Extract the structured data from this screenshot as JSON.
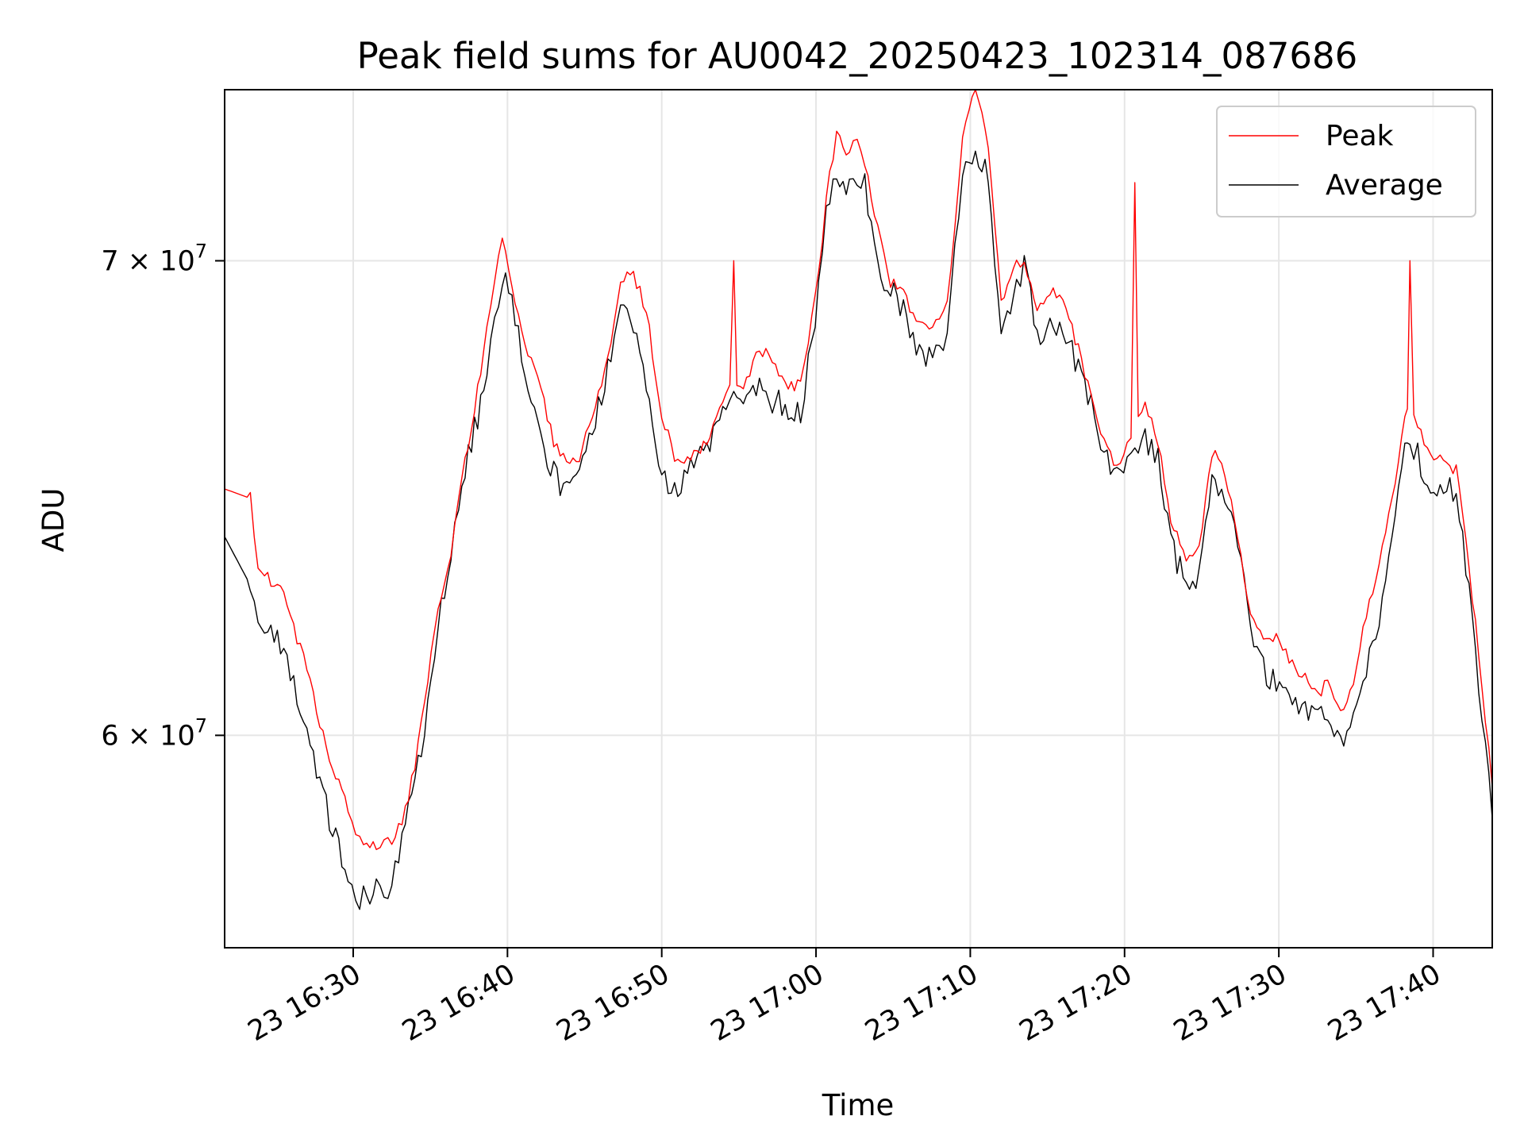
{
  "chart_data": {
    "type": "line",
    "title": "Peak field sums for AU0042_20250423_102314_087686",
    "xlabel": "Time",
    "ylabel": "ADU",
    "yscale": "log",
    "grid": true,
    "legend_position": "upper right",
    "x_ticks": [
      "23 16:30",
      "23 16:40",
      "23 16:50",
      "23 17:00",
      "23 17:10",
      "23 17:20",
      "23 17:30",
      "23 17:40"
    ],
    "y_ticks": [
      {
        "base": "6",
        "exp": "7",
        "value": 60000000
      },
      {
        "base": "7",
        "exp": "7",
        "value": 70000000
      }
    ],
    "xlim": [
      "16:21:40",
      "17:43:50"
    ],
    "ylim": [
      56000000,
      74000000
    ],
    "series": [
      {
        "name": "Peak",
        "color": "#ff0000",
        "x": [
          "16:21:40",
          "16:23:20",
          "16:23:50",
          "16:25:30",
          "16:27:00",
          "16:27:50",
          "16:28:40",
          "16:29:40",
          "16:30:10",
          "16:30:40",
          "16:31:30",
          "16:32:00",
          "16:32:30",
          "16:33:10",
          "16:34:00",
          "16:34:50",
          "16:35:30",
          "16:36:20",
          "16:36:50",
          "16:37:40",
          "16:38:40",
          "16:39:10",
          "16:39:40",
          "16:40:30",
          "16:41:20",
          "16:42:10",
          "16:43:00",
          "16:43:50",
          "16:44:40",
          "16:45:30",
          "16:46:30",
          "16:47:20",
          "16:48:10",
          "16:49:00",
          "16:50:00",
          "16:50:50",
          "16:51:40",
          "16:52:30",
          "16:53:20",
          "16:54:10",
          "16:54:40",
          "16:55:30",
          "16:56:20",
          "16:57:10",
          "16:58:00",
          "16:59:00",
          "16:59:30",
          "17:00:10",
          "17:00:40",
          "17:01:20",
          "17:02:10",
          "17:02:40",
          "17:03:10",
          "17:04:00",
          "17:04:50",
          "17:05:40",
          "17:06:30",
          "17:07:20",
          "17:08:00",
          "17:08:30",
          "17:09:00",
          "17:09:30",
          "17:10:20",
          "17:11:10",
          "17:12:00",
          "17:13:00",
          "17:13:30",
          "17:14:20",
          "17:15:10",
          "17:16:00",
          "17:17:00",
          "17:17:50",
          "17:18:40",
          "17:19:30",
          "17:20:10",
          "17:20:40",
          "17:21:20",
          "17:22:10",
          "17:23:00",
          "17:24:00",
          "17:24:50",
          "17:25:40",
          "17:26:30",
          "17:27:20",
          "17:28:10",
          "17:29:00",
          "17:29:50",
          "17:30:40",
          "17:31:30",
          "17:32:20",
          "17:33:10",
          "17:34:00",
          "17:34:50",
          "17:35:40",
          "17:36:30",
          "17:37:20",
          "17:38:10",
          "17:38:30",
          "17:39:00",
          "17:39:50",
          "17:40:40",
          "17:41:30",
          "17:42:20",
          "17:43:10",
          "17:43:50"
        ],
        "values": [
          65000000,
          64800000,
          63400000,
          62800000,
          61300000,
          60200000,
          59400000,
          58600000,
          58000000,
          57900000,
          57850000,
          57900000,
          58000000,
          58300000,
          59400000,
          61000000,
          62600000,
          63600000,
          64900000,
          66300000,
          68400000,
          69500000,
          70500000,
          69000000,
          68000000,
          67100000,
          66000000,
          65500000,
          65700000,
          66600000,
          67800000,
          69600000,
          69700000,
          68900000,
          66600000,
          65700000,
          65600000,
          65800000,
          66300000,
          67000000,
          67200000,
          67300000,
          68000000,
          67800000,
          67300000,
          67200000,
          68200000,
          69700000,
          71400000,
          73000000,
          72400000,
          72900000,
          72200000,
          70700000,
          69500000,
          69300000,
          68600000,
          68400000,
          68600000,
          69000000,
          70800000,
          73000000,
          74000000,
          72700000,
          69000000,
          69900000,
          70000000,
          68900000,
          69300000,
          69200000,
          68000000,
          67000000,
          66000000,
          65500000,
          66000000,
          66300000,
          66800000,
          66000000,
          64300000,
          63500000,
          63800000,
          65800000,
          65400000,
          64000000,
          62400000,
          62000000,
          61900000,
          61500000,
          61200000,
          60800000,
          61000000,
          60400000,
          61000000,
          62400000,
          63500000,
          64800000,
          66500000,
          66800000,
          66400000,
          65700000,
          65600000,
          65400000,
          63400000,
          61000000,
          59000000
        ],
        "spikes": [
          {
            "x": "16:54:40",
            "y": 70000000
          },
          {
            "x": "17:20:40",
            "y": 71800000
          },
          {
            "x": "17:38:30",
            "y": 70000000
          }
        ]
      },
      {
        "name": "Average",
        "color": "#000000",
        "x": [
          "16:21:40",
          "16:23:20",
          "16:23:50",
          "16:25:30",
          "16:27:00",
          "16:27:50",
          "16:28:40",
          "16:29:40",
          "16:30:10",
          "16:30:40",
          "16:31:30",
          "16:32:00",
          "16:32:30",
          "16:33:10",
          "16:34:00",
          "16:34:50",
          "16:35:30",
          "16:36:20",
          "16:36:50",
          "16:37:40",
          "16:38:40",
          "16:39:10",
          "16:39:40",
          "16:40:30",
          "16:41:20",
          "16:42:10",
          "16:43:00",
          "16:43:50",
          "16:44:40",
          "16:45:30",
          "16:46:30",
          "16:47:20",
          "16:48:10",
          "16:49:00",
          "16:50:00",
          "16:50:50",
          "16:51:40",
          "16:52:30",
          "16:53:20",
          "16:54:10",
          "16:54:40",
          "16:55:30",
          "16:56:20",
          "16:57:10",
          "16:58:00",
          "16:59:00",
          "16:59:30",
          "17:00:10",
          "17:00:40",
          "17:01:20",
          "17:02:10",
          "17:02:40",
          "17:03:10",
          "17:04:00",
          "17:04:50",
          "17:05:40",
          "17:06:30",
          "17:07:20",
          "17:08:00",
          "17:08:30",
          "17:09:00",
          "17:09:30",
          "17:10:20",
          "17:11:10",
          "17:12:00",
          "17:13:00",
          "17:13:30",
          "17:14:20",
          "17:15:10",
          "17:16:00",
          "17:17:00",
          "17:17:50",
          "17:18:40",
          "17:19:30",
          "17:20:10",
          "17:20:40",
          "17:21:20",
          "17:22:10",
          "17:23:00",
          "17:24:00",
          "17:24:50",
          "17:25:40",
          "17:26:30",
          "17:27:20",
          "17:28:10",
          "17:29:00",
          "17:29:50",
          "17:30:40",
          "17:31:30",
          "17:32:20",
          "17:33:10",
          "17:34:00",
          "17:34:50",
          "17:35:40",
          "17:36:30",
          "17:37:20",
          "17:38:10",
          "17:38:30",
          "17:39:00",
          "17:39:50",
          "17:40:40",
          "17:41:30",
          "17:42:20",
          "17:43:10",
          "17:43:50"
        ],
        "values": [
          64000000,
          63000000,
          62200000,
          61700000,
          60000000,
          59000000,
          58200000,
          57400000,
          56800000,
          57000000,
          57100000,
          56900000,
          57300000,
          58000000,
          59000000,
          60500000,
          62300000,
          63400000,
          64700000,
          66000000,
          67300000,
          68700000,
          69700000,
          68800000,
          67200000,
          66000000,
          65300000,
          64900000,
          65400000,
          66300000,
          67600000,
          69300000,
          68500000,
          67300000,
          65400000,
          64900000,
          65300000,
          65700000,
          66100000,
          66600000,
          66800000,
          66900000,
          67200000,
          66900000,
          66800000,
          66600000,
          67700000,
          69300000,
          71000000,
          72000000,
          71700000,
          71900000,
          71700000,
          69800000,
          69300000,
          68900000,
          67900000,
          67800000,
          68100000,
          68400000,
          70400000,
          71800000,
          72600000,
          71900000,
          68300000,
          69400000,
          70000000,
          68300000,
          68600000,
          68400000,
          67600000,
          66800000,
          65700000,
          65300000,
          65700000,
          65800000,
          66100000,
          65600000,
          63800000,
          63000000,
          63200000,
          65300000,
          64900000,
          63800000,
          62100000,
          61300000,
          61000000,
          60700000,
          60500000,
          60300000,
          60400000,
          59900000,
          60200000,
          61300000,
          62100000,
          63800000,
          66000000,
          66100000,
          65700000,
          65100000,
          65100000,
          64900000,
          62900000,
          60300000,
          58400000
        ]
      }
    ]
  }
}
